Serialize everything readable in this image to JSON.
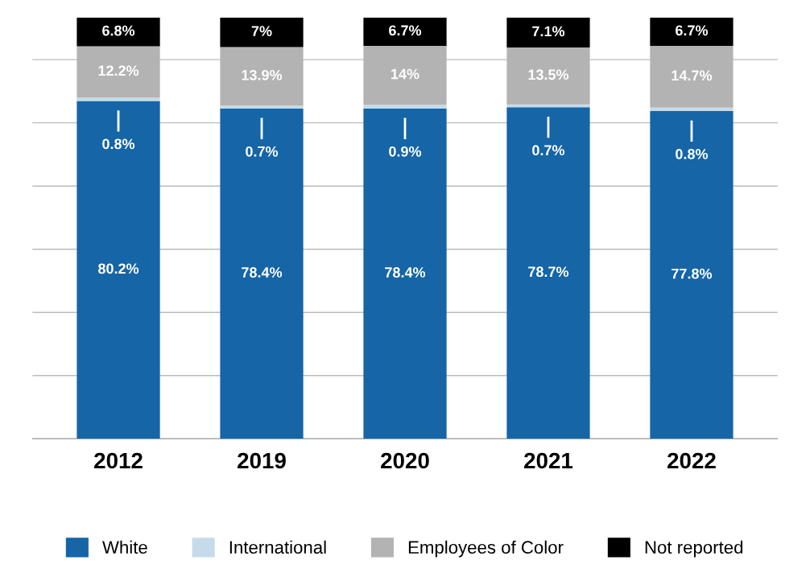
{
  "chart_data": {
    "type": "bar",
    "stacked": true,
    "categories": [
      "2012",
      "2019",
      "2020",
      "2021",
      "2022"
    ],
    "series": [
      {
        "name": "White",
        "color": "#1565a7",
        "values": [
          80.2,
          78.4,
          78.4,
          78.7,
          77.8
        ],
        "value_labels": [
          "80.2%",
          "78.4%",
          "78.4%",
          "78.7%",
          "77.8%"
        ]
      },
      {
        "name": "International",
        "color": "#c5dbe9",
        "values": [
          0.8,
          0.7,
          0.9,
          0.7,
          0.8
        ],
        "value_labels": [
          "0.8%",
          "0.7%",
          "0.9%",
          "0.7%",
          "0.8%"
        ]
      },
      {
        "name": "Employees of Color",
        "color": "#b3b3b3",
        "values": [
          12.2,
          13.9,
          14,
          13.5,
          14.7
        ],
        "value_labels": [
          "12.2%",
          "13.9%",
          "14%",
          "13.5%",
          "14.7%"
        ]
      },
      {
        "name": "Not reported",
        "color": "#000000",
        "values": [
          6.8,
          7,
          6.7,
          7.1,
          6.7
        ],
        "value_labels": [
          "6.8%",
          "7%",
          "6.7%",
          "7.1%",
          "6.7%"
        ]
      }
    ],
    "tick_labels": "x",
    "grid": "y",
    "legend": "bottom"
  }
}
